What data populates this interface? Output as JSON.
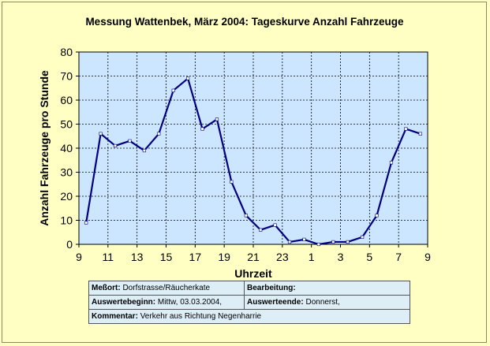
{
  "chart_data": {
    "type": "line",
    "title": "Messung Wattenbek, März 2004: Tageskurve Anzahl Fahrzeuge",
    "xlabel": "Uhrzeit",
    "ylabel": "Anzahl Fahrzeuge pro Stunde",
    "ylim": [
      0,
      80
    ],
    "yticks": [
      "0",
      "10",
      "20",
      "30",
      "40",
      "50",
      "60",
      "70",
      "80"
    ],
    "xticks": [
      "9",
      "11",
      "13",
      "15",
      "17",
      "19",
      "21",
      "23",
      "1",
      "3",
      "5",
      "7",
      "9"
    ],
    "grid": true,
    "plot_background": "#cce6ff",
    "line_color": "#000080",
    "series": [
      {
        "values": [
          9,
          46,
          41,
          43,
          39,
          46,
          64,
          69,
          48,
          52,
          26,
          12,
          6,
          8,
          1,
          2,
          0,
          1,
          1,
          3,
          12,
          34,
          48,
          46
        ]
      }
    ]
  },
  "info": {
    "messort_label": "Meßort:",
    "messort_value": "Dorfstrasse/Räucherkate",
    "bearbeitung_label": "Bearbeitung:",
    "bearbeitung_value": "",
    "auswertebeginn_label": "Auswertebeginn:",
    "auswertebeginn_value": "Mittw, 03.03.2004,",
    "auswerteende_label": "Auswerteende:",
    "auswerteende_value": "Donnerst,",
    "kommentar_label": "Kommentar:",
    "kommentar_value": "Verkehr aus Richtung Negenharrie"
  }
}
